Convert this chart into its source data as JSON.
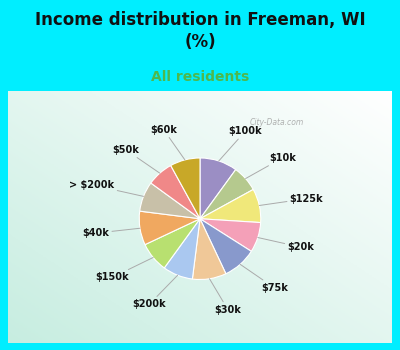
{
  "title": "Income distribution in Freeman, WI\n(%)",
  "subtitle": "All residents",
  "title_color": "#111111",
  "subtitle_color": "#4db84d",
  "bg_cyan": "#00eeff",
  "watermark": "City-Data.com",
  "labels": [
    "$100k",
    "$10k",
    "$125k",
    "$20k",
    "$75k",
    "$30k",
    "$200k",
    "$150k",
    "$40k",
    "> $200k",
    "$50k",
    "$60k"
  ],
  "values": [
    10,
    7,
    9,
    8,
    9,
    9,
    8,
    8,
    9,
    8,
    7,
    8
  ],
  "colors": [
    "#9b8ec4",
    "#b5c98e",
    "#f0e87a",
    "#f4a0b8",
    "#8899cc",
    "#f0c898",
    "#aac8f0",
    "#b8e070",
    "#f0a860",
    "#c8c0a8",
    "#f08888",
    "#c8a828"
  ],
  "figsize": [
    4.0,
    3.5
  ],
  "dpi": 100,
  "title_fontsize": 12,
  "subtitle_fontsize": 10
}
